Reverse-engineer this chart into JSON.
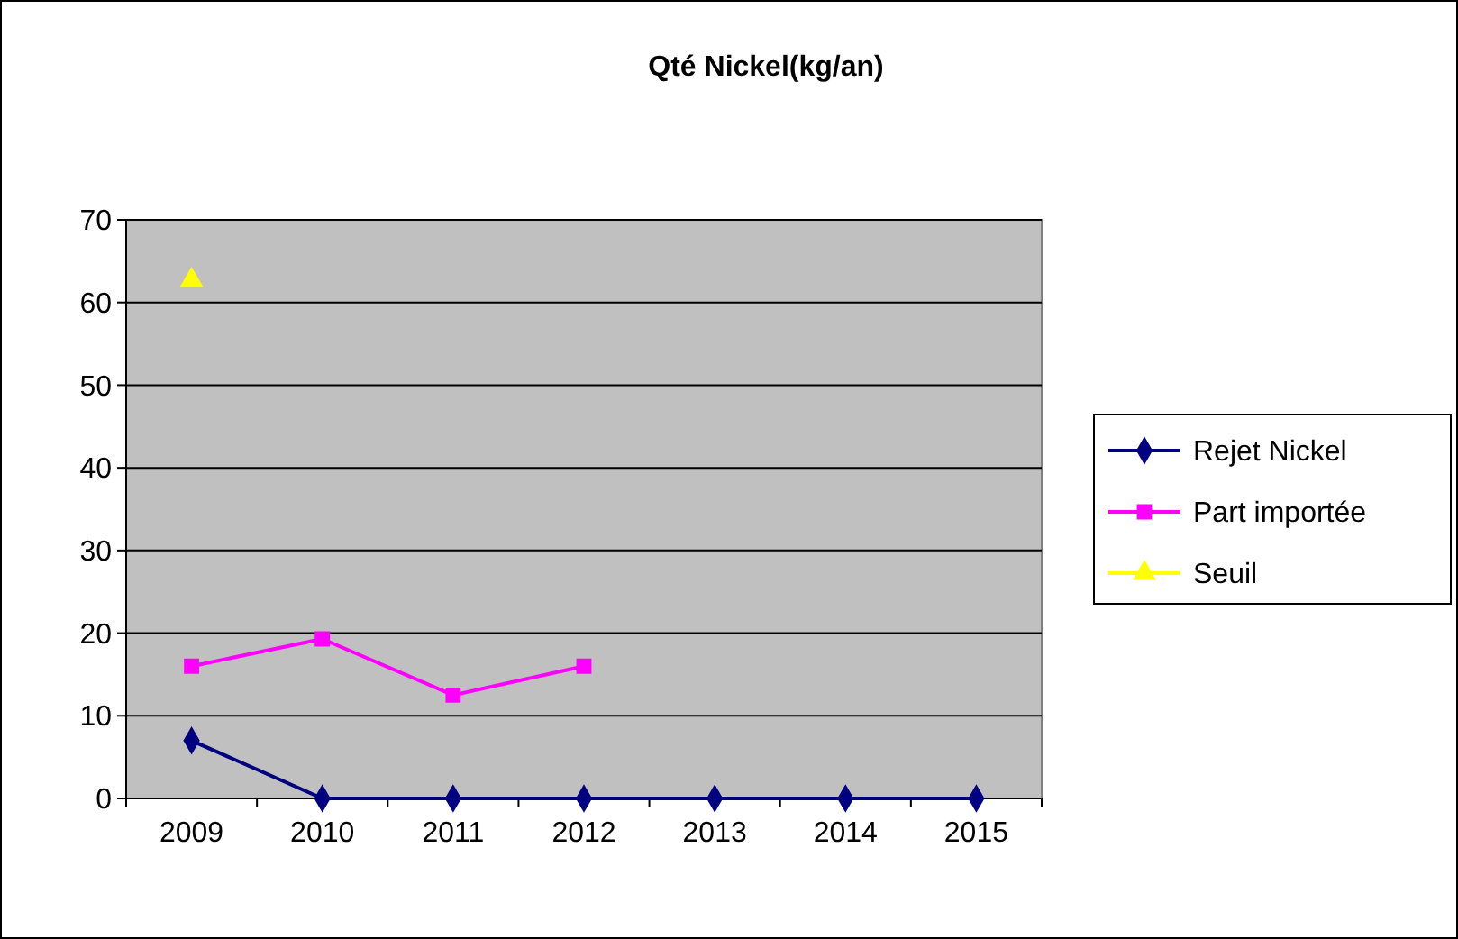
{
  "chart_data": {
    "type": "line",
    "title": "Qté Nickel(kg/an)",
    "categories": [
      "2009",
      "2010",
      "2011",
      "2012",
      "2013",
      "2014",
      "2015"
    ],
    "series": [
      {
        "name": "Rejet Nickel",
        "color": "#000080",
        "marker": "diamond",
        "values": [
          7,
          0,
          0,
          0,
          0,
          0,
          0
        ]
      },
      {
        "name": "Part importée",
        "color": "#ff00ff",
        "marker": "square",
        "values": [
          16,
          19.3,
          12.5,
          16,
          null,
          null,
          null
        ]
      },
      {
        "name": "Seuil",
        "color": "#ffff00",
        "marker": "triangle",
        "values": [
          62.7,
          null,
          null,
          null,
          null,
          null,
          null
        ]
      }
    ],
    "ylim": [
      0,
      70
    ],
    "yticks": [
      0,
      10,
      20,
      30,
      40,
      50,
      60,
      70
    ],
    "grid": "y",
    "legend": "right"
  }
}
